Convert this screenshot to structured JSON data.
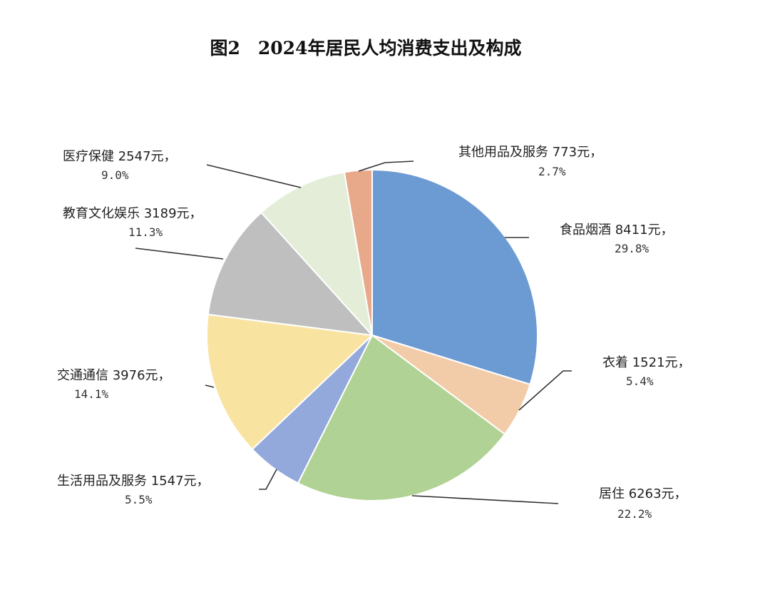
{
  "chart_data": {
    "type": "pie",
    "title": "图2　2024年居民人均消费支出及构成",
    "unit": "元",
    "start": "top",
    "direction": "clockwise",
    "slices": [
      {
        "name": "食品烟酒",
        "value": 8411,
        "percent": 29.8,
        "color": "#6b9bd2",
        "label": "食品烟酒  8411元，",
        "pct_label": "29.8%"
      },
      {
        "name": "衣着",
        "value": 1521,
        "percent": 5.4,
        "color": "#f2cca8",
        "label": "衣着  1521元，",
        "pct_label": "5.4%"
      },
      {
        "name": "居住",
        "value": 6263,
        "percent": 22.2,
        "color": "#b0d294",
        "label": "居住  6263元，",
        "pct_label": "22.2%"
      },
      {
        "name": "生活用品及服务",
        "value": 1547,
        "percent": 5.5,
        "color": "#93a9db",
        "label": "生活用品及服务  1547元，",
        "pct_label": "5.5%"
      },
      {
        "name": "交通通信",
        "value": 3976,
        "percent": 14.1,
        "color": "#f9e3a1",
        "label": "交通通信  3976元，",
        "pct_label": "14.1%"
      },
      {
        "name": "教育文化娱乐",
        "value": 3189,
        "percent": 11.3,
        "color": "#bfbfbf",
        "label": "教育文化娱乐  3189元，",
        "pct_label": "11.3%"
      },
      {
        "name": "医疗保健",
        "value": 2547,
        "percent": 9.0,
        "color": "#e3edd8",
        "label": "医疗保健  2547元，",
        "pct_label": "9.0%"
      },
      {
        "name": "其他用品及服务",
        "value": 773,
        "percent": 2.7,
        "color": "#e8a98a",
        "label": "其他用品及服务  773元，",
        "pct_label": "2.7%"
      }
    ]
  }
}
